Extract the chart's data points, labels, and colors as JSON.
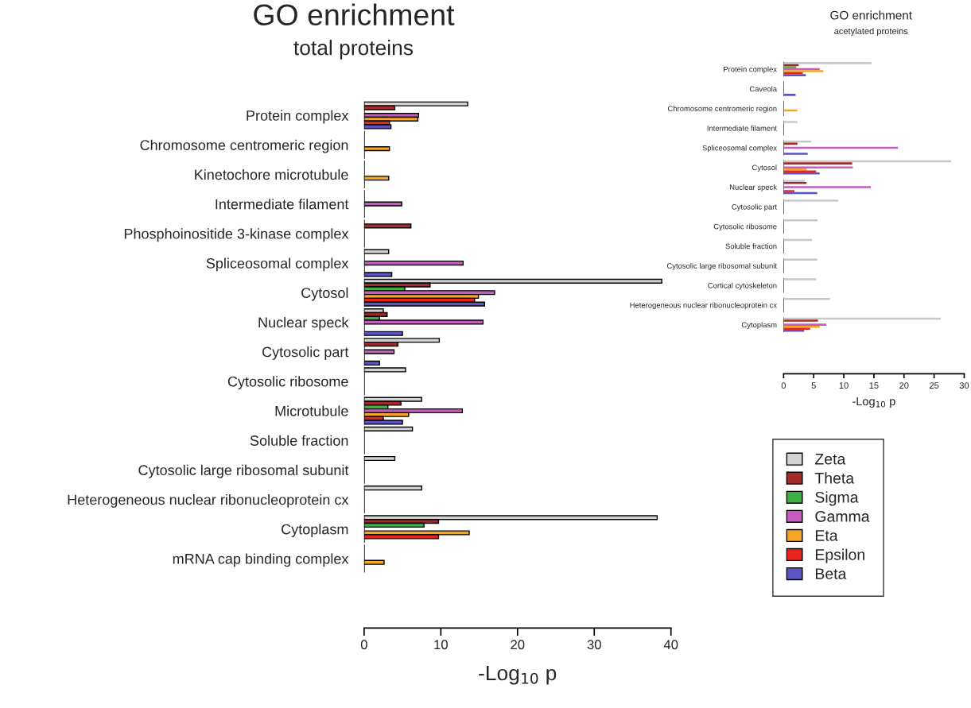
{
  "chart_data": [
    {
      "type": "bar",
      "orientation": "horizontal",
      "title": "GO enrichment",
      "subtitle": "total proteins",
      "xlabel": "-Log$_{10}$ p",
      "categories": [
        "Protein complex",
        "Chromosome centromeric region",
        "Kinetochore microtubule",
        "Intermediate filament",
        "Phosphoinositide 3-kinase complex",
        "Spliceosomal complex",
        "Cytosol",
        "Nuclear speck",
        "Cytosolic part",
        "Cytosolic ribosome",
        "Microtubule",
        "Soluble fraction",
        "Cytosolic large ribosomal subunit",
        "Heterogeneous nuclear ribonucleoprotein cx",
        "Cytoplasm",
        "mRNA cap binding complex"
      ],
      "series": [
        {
          "name": "Zeta",
          "color": "#d3d3d3",
          "values": [
            13.5,
            null,
            null,
            null,
            null,
            3.2,
            38.8,
            2.5,
            9.8,
            5.4,
            7.5,
            6.3,
            4.0,
            7.5,
            38.2,
            null
          ]
        },
        {
          "name": "Theta",
          "color": "#a52a2a",
          "values": [
            4.0,
            null,
            null,
            null,
            6.1,
            null,
            8.6,
            3.0,
            4.4,
            null,
            4.8,
            null,
            null,
            null,
            9.7,
            null
          ]
        },
        {
          "name": "Sigma",
          "color": "#3cb043",
          "values": [
            null,
            null,
            null,
            null,
            null,
            null,
            5.3,
            2.0,
            null,
            null,
            3.1,
            null,
            null,
            null,
            7.8,
            null
          ]
        },
        {
          "name": "Gamma",
          "color": "#c65cc0",
          "values": [
            7.1,
            null,
            null,
            4.9,
            null,
            12.9,
            17.0,
            15.5,
            3.9,
            null,
            12.8,
            null,
            null,
            null,
            null,
            null
          ]
        },
        {
          "name": "Eta",
          "color": "#f5a623",
          "values": [
            7.0,
            3.3,
            3.2,
            null,
            null,
            null,
            14.9,
            null,
            null,
            null,
            5.8,
            null,
            null,
            null,
            13.7,
            2.6
          ]
        },
        {
          "name": "Epsilon",
          "color": "#e8241f",
          "values": [
            3.3,
            null,
            null,
            null,
            null,
            null,
            14.4,
            null,
            null,
            null,
            2.5,
            null,
            null,
            null,
            9.7,
            null
          ]
        },
        {
          "name": "Beta",
          "color": "#5a55c0",
          "values": [
            3.5,
            null,
            null,
            null,
            null,
            3.6,
            15.7,
            5.0,
            2.0,
            null,
            5.0,
            null,
            null,
            null,
            null,
            null
          ]
        }
      ],
      "xlim": [
        0,
        40
      ],
      "xticks": [
        0,
        10,
        20,
        30,
        40
      ],
      "grid": false,
      "legend": "right"
    },
    {
      "type": "bar",
      "orientation": "horizontal",
      "title": "GO enrichment",
      "subtitle": "acetylated proteins",
      "xlabel": "-Log$_{10}$ p",
      "categories": [
        "Protein complex",
        "Caveola",
        "Chromosome centromeric region",
        "Intermediate filament",
        "Spliceosomal complex",
        "Cytosol",
        "Nuclear speck",
        "Cytosolic part",
        "Cytosolic ribosome",
        "Soluble fraction",
        "Cytosolic large ribosomal subunit",
        "Cortical cytoskeleton",
        "Heterogeneous nuclear ribonucleoprotein cx",
        "Cytoplasm"
      ],
      "series": [
        {
          "color": "#c8c8c8",
          "values": [
            14.6,
            null,
            null,
            2.3,
            4.6,
            27.8,
            3.5,
            9.1,
            5.6,
            4.7,
            5.6,
            5.4,
            7.7,
            26.1
          ]
        },
        {
          "color": "#a52a2a",
          "values": [
            2.5,
            null,
            null,
            null,
            2.3,
            11.4,
            3.8,
            null,
            null,
            null,
            null,
            null,
            null,
            5.7
          ]
        },
        {
          "color": "#3cb043",
          "values": [
            2.1,
            null,
            null,
            null,
            null,
            null,
            null,
            null,
            null,
            null,
            null,
            null,
            null,
            null
          ]
        },
        {
          "color": "#c65cc0",
          "values": [
            6.0,
            null,
            null,
            null,
            19.0,
            11.5,
            14.5,
            null,
            null,
            null,
            null,
            null,
            null,
            7.1
          ]
        },
        {
          "color": "#f5a623",
          "values": [
            6.6,
            null,
            2.3,
            null,
            null,
            3.8,
            null,
            null,
            null,
            null,
            null,
            null,
            null,
            6.0
          ]
        },
        {
          "color": "#e8241f",
          "values": [
            3.2,
            null,
            null,
            null,
            null,
            5.4,
            1.8,
            null,
            null,
            null,
            null,
            null,
            null,
            4.4
          ]
        },
        {
          "color": "#5a55c0",
          "values": [
            3.7,
            2.0,
            null,
            null,
            4.0,
            6.0,
            5.6,
            null,
            null,
            null,
            null,
            null,
            null,
            3.4
          ]
        }
      ],
      "xlim": [
        0,
        30
      ],
      "xticks": [
        0,
        5,
        10,
        15,
        20,
        25,
        30
      ],
      "grid": false
    }
  ]
}
